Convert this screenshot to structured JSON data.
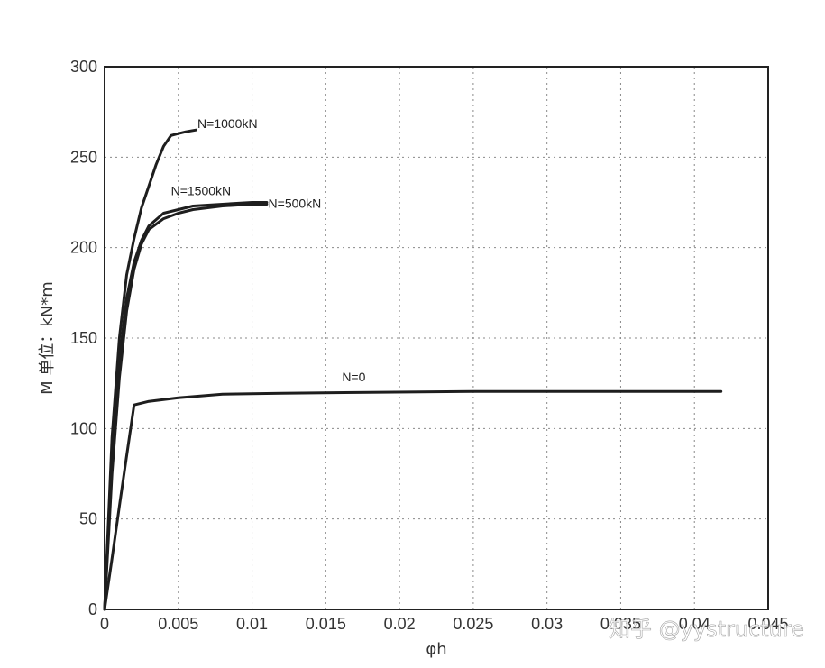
{
  "chart_data": {
    "type": "line",
    "title": "",
    "xlabel": "φh",
    "ylabel": "M 单位：kN*m",
    "xlim": [
      0,
      0.045
    ],
    "ylim": [
      0,
      300
    ],
    "grid": true,
    "x_ticks": [
      0,
      0.005,
      0.01,
      0.015,
      0.02,
      0.025,
      0.03,
      0.035,
      0.04,
      0.045
    ],
    "x_tick_labels": [
      "0",
      "0.005",
      "0.01",
      "0.015",
      "0.02",
      "0.025",
      "0.03",
      "0.035",
      "0.04",
      "0.045"
    ],
    "y_ticks": [
      0,
      50,
      100,
      150,
      200,
      250,
      300
    ],
    "y_tick_labels": [
      "0",
      "50",
      "100",
      "150",
      "200",
      "250",
      "300"
    ],
    "series": [
      {
        "name": "N=1000kN",
        "x": [
          0,
          0.0005,
          0.001,
          0.0015,
          0.002,
          0.0025,
          0.003,
          0.0035,
          0.004,
          0.0045,
          0.005,
          0.0055,
          0.0062
        ],
        "y": [
          0,
          95,
          150,
          185,
          205,
          222,
          234,
          246,
          256,
          262,
          263,
          264,
          265
        ]
      },
      {
        "name": "N=1500kN",
        "x": [
          0,
          0.0005,
          0.001,
          0.0015,
          0.002,
          0.0025,
          0.003,
          0.004,
          0.005,
          0.006,
          0.008,
          0.01,
          0.011
        ],
        "y": [
          0,
          85,
          138,
          172,
          192,
          204,
          212,
          219,
          221,
          223,
          224,
          225,
          225
        ]
      },
      {
        "name": "N=500kN",
        "x": [
          0,
          0.0005,
          0.001,
          0.0015,
          0.002,
          0.0025,
          0.003,
          0.004,
          0.005,
          0.006,
          0.008,
          0.01,
          0.011
        ],
        "y": [
          0,
          75,
          128,
          165,
          188,
          202,
          210,
          216,
          219,
          221,
          223,
          224,
          224
        ]
      },
      {
        "name": "N=0",
        "x": [
          0,
          0.0005,
          0.001,
          0.0015,
          0.002,
          0.003,
          0.005,
          0.008,
          0.012,
          0.018,
          0.025,
          0.035,
          0.0418
        ],
        "y": [
          0,
          28,
          57,
          85,
          113,
          115,
          117,
          119,
          119.5,
          120,
          120.5,
          120.5,
          120.5
        ]
      }
    ],
    "annotations": [
      {
        "text": "N=1000kN",
        "x": 0.0063,
        "y": 266
      },
      {
        "text": "N=1500kN",
        "x": 0.0045,
        "y": 229
      },
      {
        "text": "N=500kN",
        "x": 0.0111,
        "y": 222
      },
      {
        "text": "N=0",
        "x": 0.0161,
        "y": 126
      }
    ]
  },
  "watermark": "知乎 @yystructure"
}
